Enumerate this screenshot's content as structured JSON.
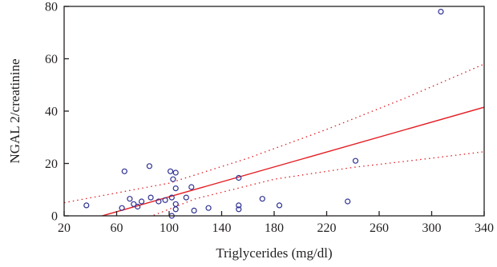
{
  "chart_data": {
    "type": "scatter",
    "xlabel": "Triglycerides (mg/dl)",
    "ylabel": "NGAL 2/creatinine",
    "xlim": [
      20,
      340
    ],
    "ylim": [
      0,
      80
    ],
    "x_ticks": [
      20,
      60,
      100,
      140,
      180,
      220,
      260,
      300,
      340
    ],
    "y_ticks": [
      0,
      20,
      40,
      60,
      80
    ],
    "grid": false,
    "legend": "none",
    "points": [
      {
        "x": 37,
        "y": 4
      },
      {
        "x": 64,
        "y": 3
      },
      {
        "x": 66,
        "y": 17
      },
      {
        "x": 70,
        "y": 6.5
      },
      {
        "x": 73,
        "y": 4.5
      },
      {
        "x": 76,
        "y": 3.5
      },
      {
        "x": 79,
        "y": 5.5
      },
      {
        "x": 85,
        "y": 19
      },
      {
        "x": 86,
        "y": 7
      },
      {
        "x": 92,
        "y": 5.5
      },
      {
        "x": 97,
        "y": 6
      },
      {
        "x": 101,
        "y": 17
      },
      {
        "x": 102,
        "y": 7
      },
      {
        "x": 102,
        "y": 0
      },
      {
        "x": 103,
        "y": 14
      },
      {
        "x": 105,
        "y": 16.5
      },
      {
        "x": 105,
        "y": 10.5
      },
      {
        "x": 105,
        "y": 4.5
      },
      {
        "x": 105,
        "y": 2.5
      },
      {
        "x": 113,
        "y": 7
      },
      {
        "x": 117,
        "y": 11
      },
      {
        "x": 119,
        "y": 2
      },
      {
        "x": 130,
        "y": 3
      },
      {
        "x": 153,
        "y": 14.5
      },
      {
        "x": 153,
        "y": 4
      },
      {
        "x": 153,
        "y": 2.5
      },
      {
        "x": 171,
        "y": 6.5
      },
      {
        "x": 184,
        "y": 4
      },
      {
        "x": 236,
        "y": 5.5
      },
      {
        "x": 242,
        "y": 21
      },
      {
        "x": 307,
        "y": 78
      }
    ],
    "regression_line": {
      "x": [
        42,
        340
      ],
      "y": [
        -1,
        41.5
      ]
    },
    "confidence_upper": {
      "x": [
        20,
        100,
        160,
        220,
        280,
        340
      ],
      "y": [
        5,
        12.5,
        22,
        33,
        45,
        58
      ]
    },
    "confidence_lower": {
      "x": [
        82,
        120,
        180,
        240,
        300,
        340
      ],
      "y": [
        -1,
        6.5,
        14,
        18.5,
        22,
        24.5
      ]
    },
    "colors": {
      "points": "#2e3192",
      "fit": "#e31e24",
      "axis": "#231f20"
    }
  }
}
